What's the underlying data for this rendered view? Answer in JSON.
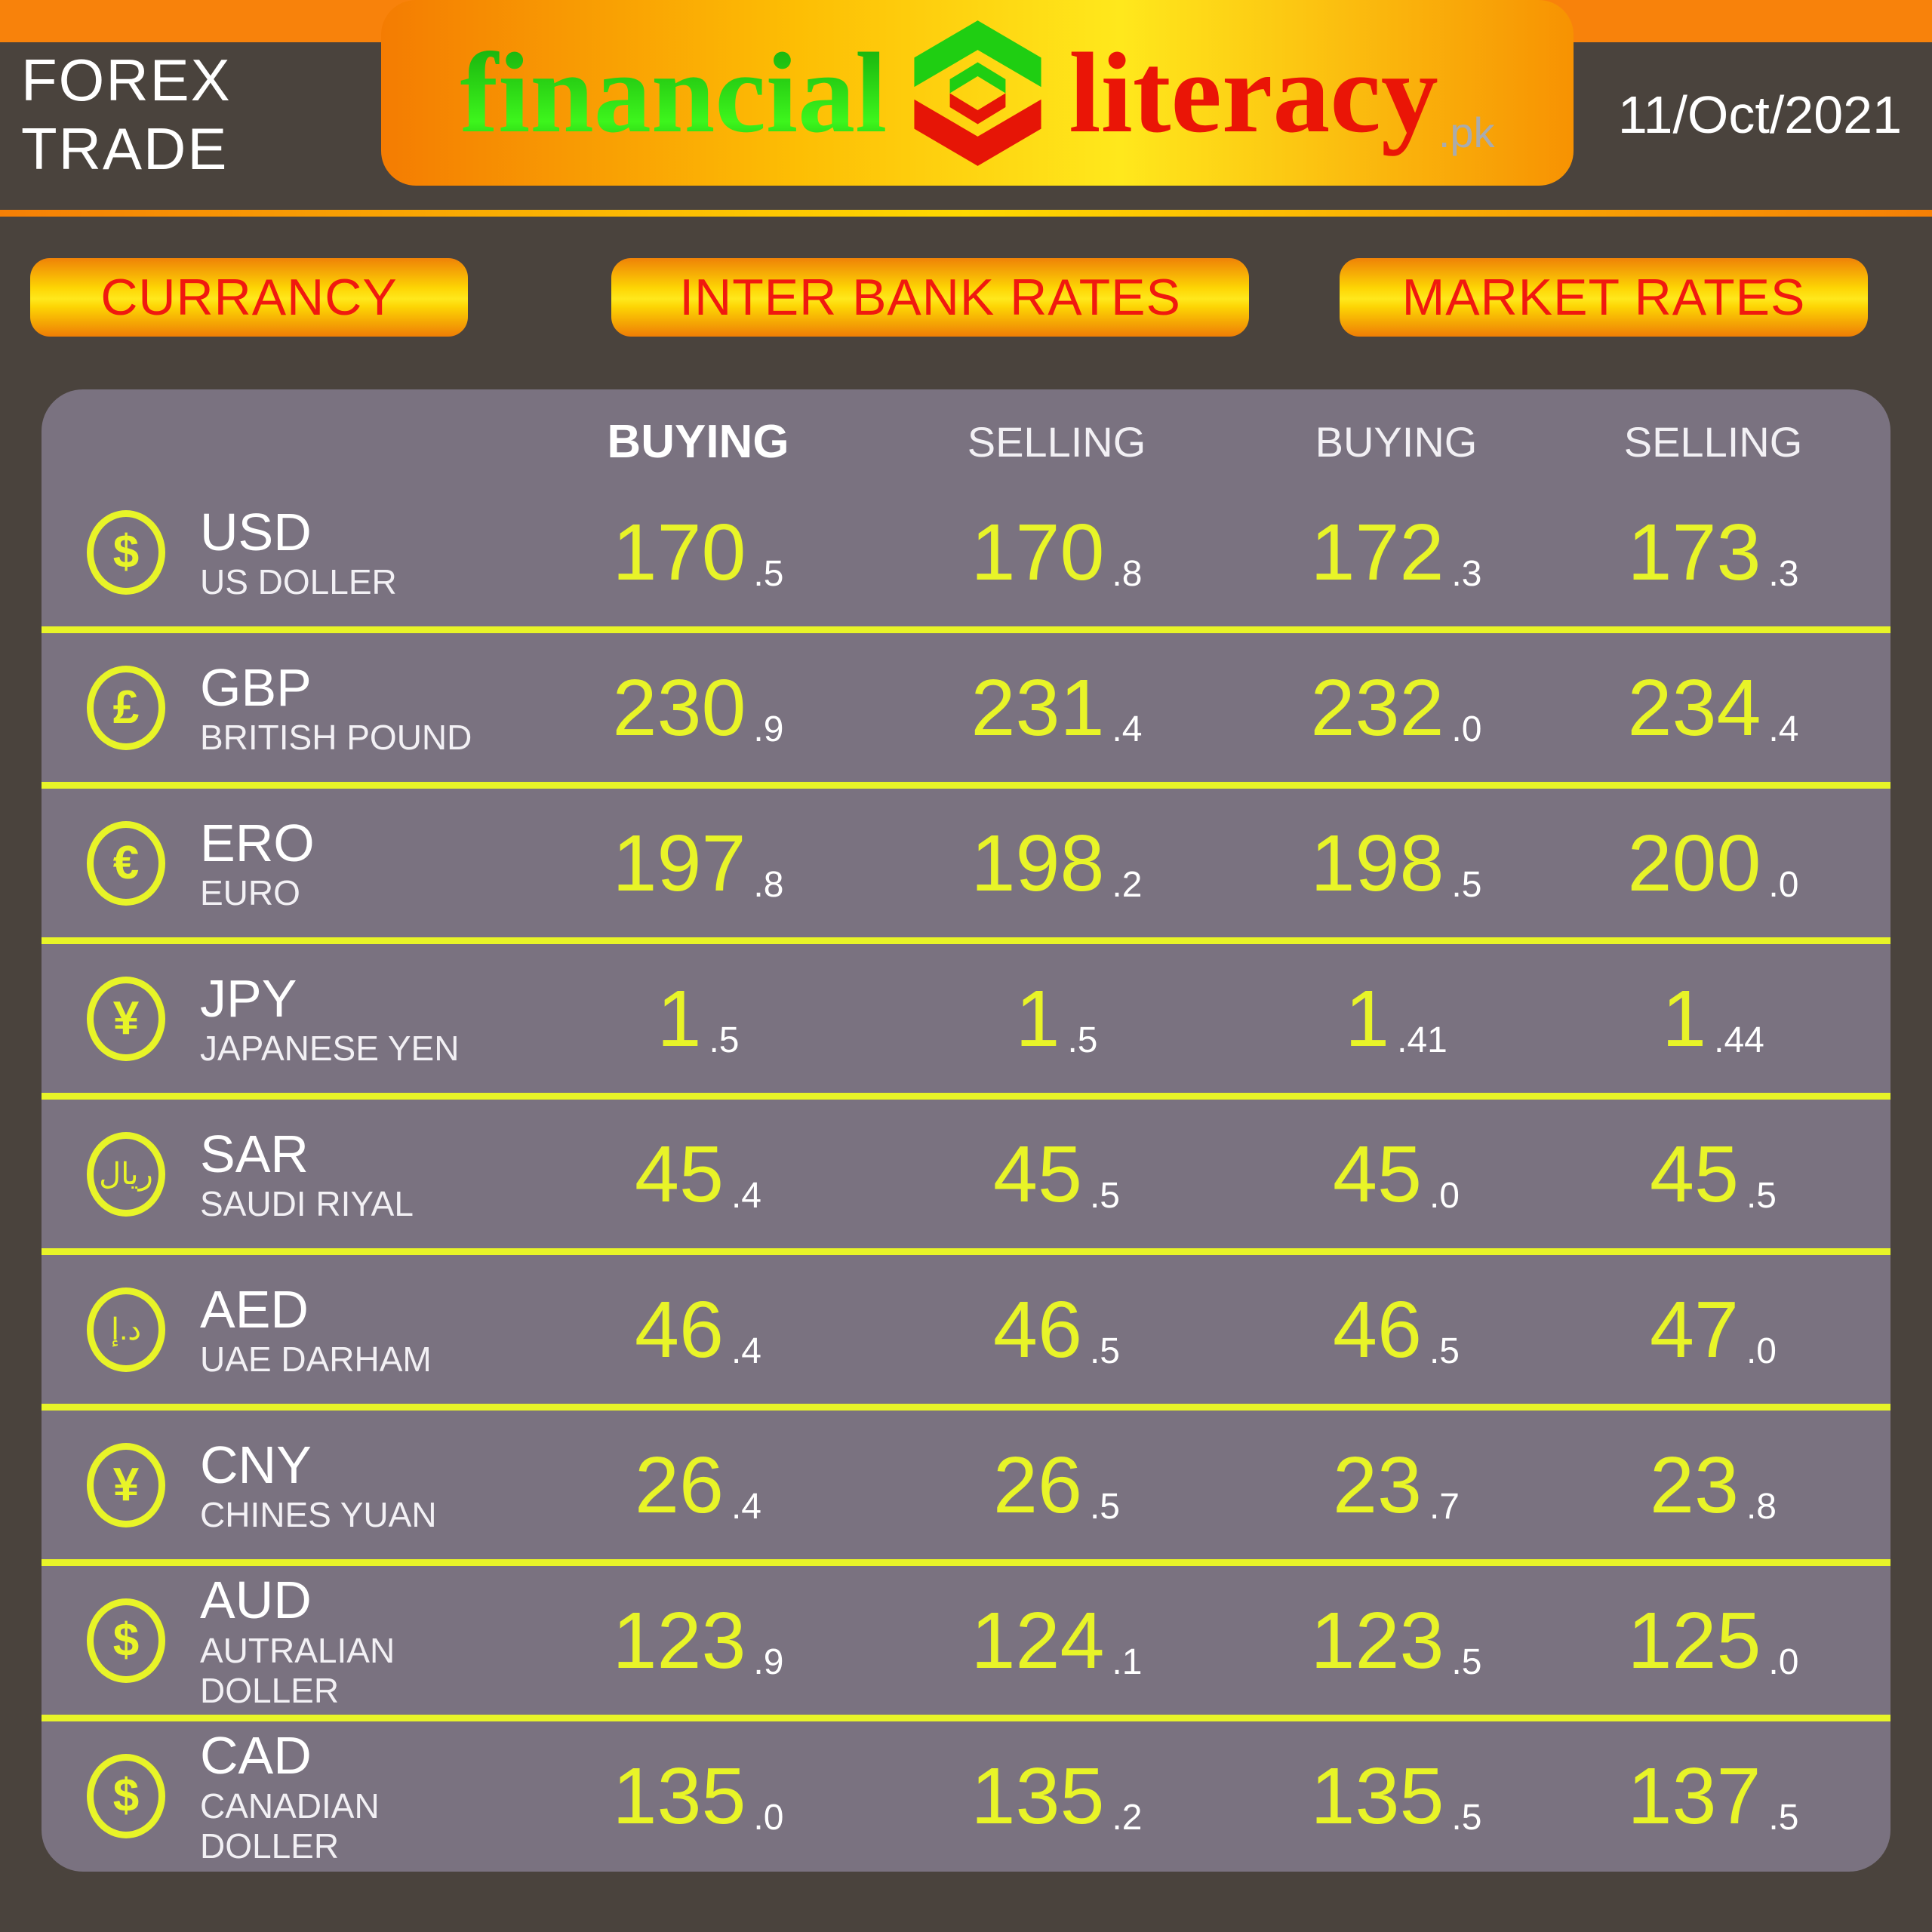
{
  "header": {
    "forex_label": "FOREX TRADE",
    "brand": {
      "financial": "financial",
      "literacy": "literacy",
      "pk": ".pk"
    },
    "date": "11/Oct/2021"
  },
  "section_pills": {
    "currency": "CURRANCY",
    "interbank": "INTER BANK RATES",
    "market": "MARKET RATES"
  },
  "table": {
    "columns": [
      "BUYING",
      "SELLING",
      "BUYING",
      "SELLING"
    ],
    "rows": [
      {
        "code": "USD",
        "name": "US DOLLER",
        "symbol": "$",
        "rates": [
          {
            "int": "170",
            "dec": ".5"
          },
          {
            "int": "170",
            "dec": ".8"
          },
          {
            "int": "172",
            "dec": ".3"
          },
          {
            "int": "173",
            "dec": ".3"
          }
        ]
      },
      {
        "code": "GBP",
        "name": "BRITISH POUND",
        "symbol": "£",
        "rates": [
          {
            "int": "230",
            "dec": ".9"
          },
          {
            "int": "231",
            "dec": ".4"
          },
          {
            "int": "232",
            "dec": ".0"
          },
          {
            "int": "234",
            "dec": ".4"
          }
        ]
      },
      {
        "code": "ERO",
        "name": "EURO",
        "symbol": "€",
        "rates": [
          {
            "int": "197",
            "dec": ".8"
          },
          {
            "int": "198",
            "dec": ".2"
          },
          {
            "int": "198",
            "dec": ".5"
          },
          {
            "int": "200",
            "dec": ".0"
          }
        ]
      },
      {
        "code": "JPY",
        "name": "JAPANESE YEN",
        "symbol": "¥",
        "rates": [
          {
            "int": "1",
            "dec": ".5"
          },
          {
            "int": "1",
            "dec": ".5"
          },
          {
            "int": "1",
            "dec": ".41"
          },
          {
            "int": "1",
            "dec": ".44"
          }
        ]
      },
      {
        "code": "SAR",
        "name": "SAUDI RIYAL",
        "symbol": "ريال",
        "rates": [
          {
            "int": "45",
            "dec": ".4"
          },
          {
            "int": "45",
            "dec": ".5"
          },
          {
            "int": "45",
            "dec": ".0"
          },
          {
            "int": "45",
            "dec": ".5"
          }
        ]
      },
      {
        "code": "AED",
        "name": "UAE DARHAM",
        "symbol": "د.إ",
        "rates": [
          {
            "int": "46",
            "dec": ".4"
          },
          {
            "int": "46",
            "dec": ".5"
          },
          {
            "int": "46",
            "dec": ".5"
          },
          {
            "int": "47",
            "dec": ".0"
          }
        ]
      },
      {
        "code": "CNY",
        "name": "CHINES YUAN",
        "symbol": "¥",
        "rates": [
          {
            "int": "26",
            "dec": ".4"
          },
          {
            "int": "26",
            "dec": ".5"
          },
          {
            "int": "23",
            "dec": ".7"
          },
          {
            "int": "23",
            "dec": ".8"
          }
        ]
      },
      {
        "code": "AUD",
        "name": "AUTRALIAN DOLLER",
        "symbol": "$",
        "rates": [
          {
            "int": "123",
            "dec": ".9"
          },
          {
            "int": "124",
            "dec": ".1"
          },
          {
            "int": "123",
            "dec": ".5"
          },
          {
            "int": "125",
            "dec": ".0"
          }
        ]
      },
      {
        "code": "CAD",
        "name": "CANADIAN DOLLER",
        "symbol": "$",
        "rates": [
          {
            "int": "135",
            "dec": ".0"
          },
          {
            "int": "135",
            "dec": ".2"
          },
          {
            "int": "135",
            "dec": ".5"
          },
          {
            "int": "137",
            "dec": ".5"
          }
        ]
      }
    ]
  },
  "colors": {
    "page_bg": "#4a433d",
    "table_bg": "#7a7280",
    "accent_yellow": "#e8f428",
    "orange": "#f8820b",
    "pill_text_red": "#f0190f",
    "brand_green": "#2ed312",
    "brand_red": "#ea1506",
    "pk_gray": "#a9abae"
  }
}
